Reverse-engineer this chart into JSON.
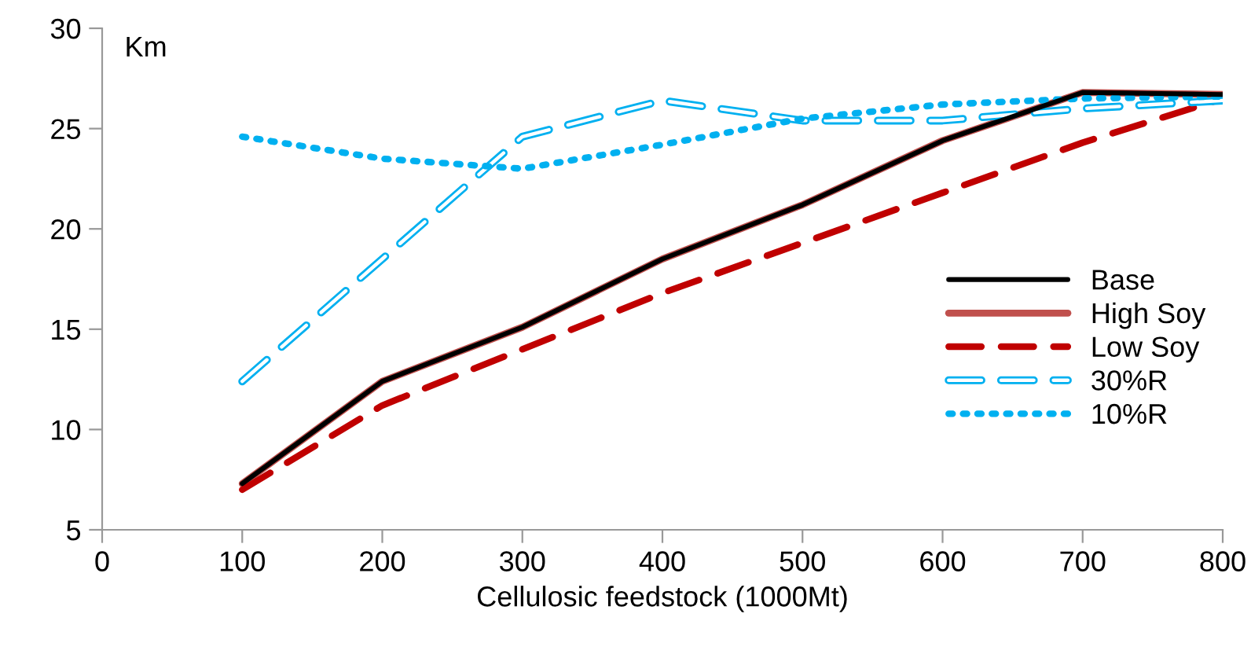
{
  "chart_data": {
    "type": "line",
    "ylabel": "Km",
    "xlabel": "Cellulosic feedstock (1000Mt)",
    "x": [
      100,
      200,
      300,
      400,
      500,
      600,
      700,
      800
    ],
    "series": [
      {
        "name": "High Soy",
        "color": "#c0504d",
        "line_style": "solid",
        "values": [
          7.3,
          12.4,
          15.1,
          18.5,
          21.2,
          24.4,
          26.8,
          26.7
        ]
      },
      {
        "name": "Base",
        "color": "#000000",
        "line_style": "solid",
        "values": [
          7.3,
          12.4,
          15.1,
          18.5,
          21.2,
          24.4,
          26.8,
          26.7
        ]
      },
      {
        "name": "Low Soy",
        "color": "#c00000",
        "line_style": "dashed",
        "values": [
          7.0,
          11.2,
          14.0,
          16.8,
          19.3,
          21.8,
          24.3,
          26.5
        ]
      },
      {
        "name": "30%R",
        "color": "#00b0f0",
        "line_style": "dashed",
        "values": [
          12.4,
          18.5,
          24.6,
          26.4,
          25.4,
          25.4,
          26.0,
          26.4
        ]
      },
      {
        "name": "10%R",
        "color": "#00b0f0",
        "line_style": "dotted",
        "values": [
          24.6,
          23.5,
          23.0,
          24.2,
          25.5,
          26.2,
          26.5,
          26.6
        ]
      }
    ],
    "xlim": [
      0,
      800
    ],
    "xticks": [
      0,
      100,
      200,
      300,
      400,
      500,
      600,
      700,
      800
    ],
    "ylim": [
      5,
      30
    ],
    "yticks": [
      5,
      10,
      15,
      20,
      25,
      30
    ],
    "legend": "right",
    "grid": false,
    "marker": "none"
  }
}
